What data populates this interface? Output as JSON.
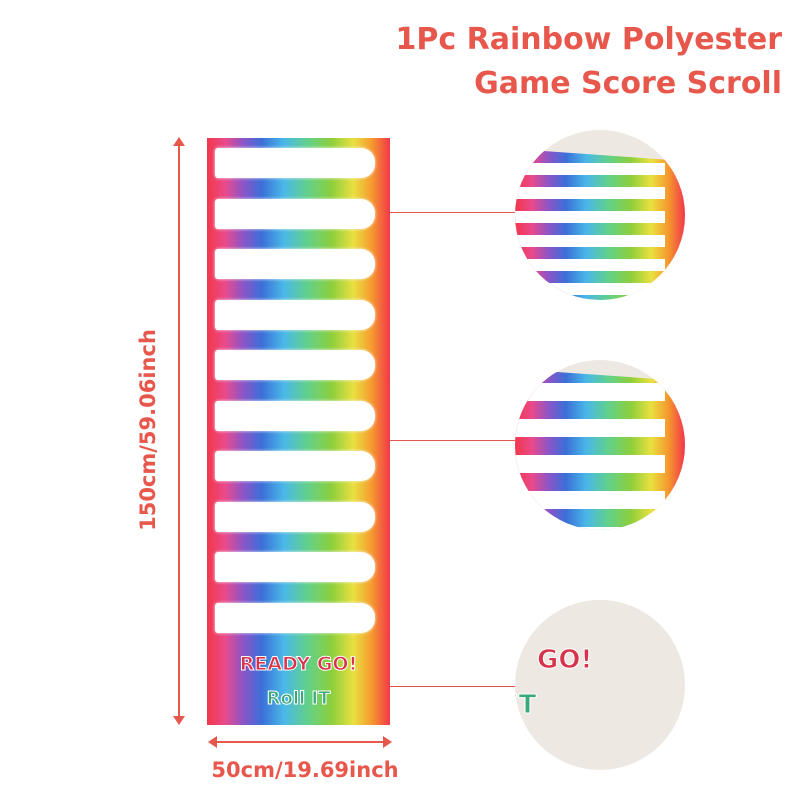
{
  "title": {
    "line1": "1Pc Rainbow Polyester",
    "line2": "Game Score Scroll"
  },
  "scroll": {
    "band_count": 10,
    "ready_text": "READY GO!",
    "roll_text": "Roll IT"
  },
  "detail_zooms": {
    "bottom_text_1": "GO!",
    "bottom_text_2": "IT"
  },
  "dimensions": {
    "height_label": "150cm/59.06inch",
    "width_label": "50cm/19.69inch"
  },
  "colors": {
    "accent": "#e8574c"
  }
}
